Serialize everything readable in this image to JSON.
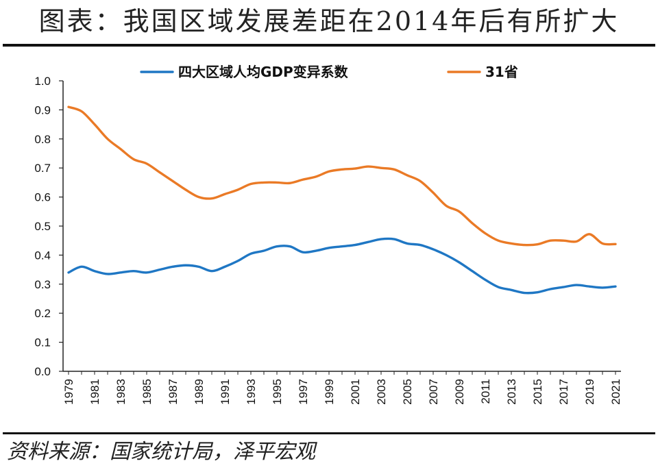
{
  "title": "图表：我国区域发展差距在2014年后有所扩大",
  "source": "资料来源：国家统计局，泽平宏观",
  "colors": {
    "series_1": "#1f77c4",
    "series_2": "#ea7a26",
    "axis": "#222222"
  },
  "chart_data": {
    "type": "line",
    "x": [
      1979,
      1980,
      1981,
      1982,
      1983,
      1984,
      1985,
      1986,
      1987,
      1988,
      1989,
      1990,
      1991,
      1992,
      1993,
      1994,
      1995,
      1996,
      1997,
      1998,
      1999,
      2000,
      2001,
      2002,
      2003,
      2004,
      2005,
      2006,
      2007,
      2008,
      2009,
      2010,
      2011,
      2012,
      2013,
      2014,
      2015,
      2016,
      2017,
      2018,
      2019,
      2020,
      2021
    ],
    "x_tick_labels": [
      "1979",
      "1981",
      "1983",
      "1985",
      "1987",
      "1989",
      "1991",
      "1993",
      "1995",
      "1997",
      "1999",
      "2001",
      "2003",
      "2005",
      "2007",
      "2009",
      "2011",
      "2013",
      "2015",
      "2017",
      "2019",
      "2021"
    ],
    "y_tick_labels": [
      "0.0",
      "0.1",
      "0.2",
      "0.3",
      "0.4",
      "0.5",
      "0.6",
      "0.7",
      "0.8",
      "0.9",
      "1.0"
    ],
    "ylim": [
      0,
      1.0
    ],
    "grid": false,
    "legend_position": "top",
    "series": [
      {
        "name": "四大区域人均GDP变异系数",
        "color": "#1f77c4",
        "values": [
          0.34,
          0.36,
          0.345,
          0.335,
          0.34,
          0.345,
          0.34,
          0.35,
          0.36,
          0.365,
          0.36,
          0.345,
          0.36,
          0.38,
          0.405,
          0.415,
          0.43,
          0.43,
          0.41,
          0.415,
          0.425,
          0.43,
          0.435,
          0.445,
          0.455,
          0.455,
          0.44,
          0.435,
          0.42,
          0.4,
          0.375,
          0.345,
          0.315,
          0.29,
          0.28,
          0.27,
          0.272,
          0.283,
          0.29,
          0.297,
          0.292,
          0.288,
          0.292
        ]
      },
      {
        "name": "31省",
        "color": "#ea7a26",
        "values": [
          0.91,
          0.895,
          0.85,
          0.8,
          0.765,
          0.73,
          0.715,
          0.685,
          0.655,
          0.625,
          0.6,
          0.595,
          0.61,
          0.625,
          0.645,
          0.65,
          0.65,
          0.648,
          0.66,
          0.67,
          0.688,
          0.695,
          0.698,
          0.705,
          0.7,
          0.695,
          0.675,
          0.655,
          0.615,
          0.57,
          0.55,
          0.51,
          0.475,
          0.45,
          0.44,
          0.435,
          0.437,
          0.45,
          0.45,
          0.447,
          0.472,
          0.44,
          0.438
        ]
      }
    ]
  }
}
